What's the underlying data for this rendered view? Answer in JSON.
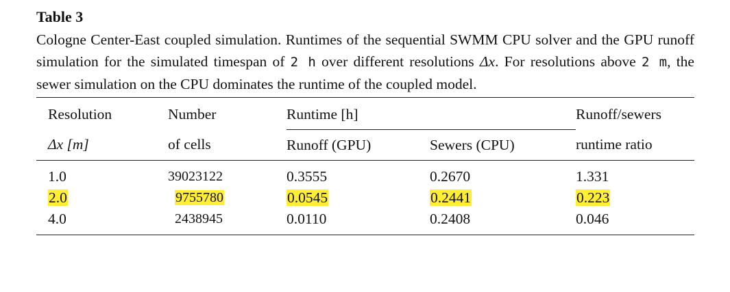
{
  "table_label": "Table 3",
  "caption": {
    "part1": "Cologne Center-East coupled simulation. Runtimes of the sequential SWMM CPU solver and the GPU runoff simulation for the simulated timespan of ",
    "timespan": "2 h",
    "part2": " over different resolutions ",
    "symbol": "Δx",
    "part3": ". For resolutions above ",
    "threshold": "2 m",
    "part4": ", the sewer simulation on the CPU dominates the runtime of the coupled model."
  },
  "headers": {
    "resolution": "Resolution",
    "resolution_unit": "Δx [m]",
    "cells_line1": "Number",
    "cells_line2": "of cells",
    "runtime_group": "Runtime [h]",
    "runoff_gpu": "Runoff (GPU)",
    "sewers_cpu": "Sewers (CPU)",
    "ratio_line1": "Runoff/sewers",
    "ratio_line2": "runtime ratio"
  },
  "rows": [
    {
      "resolution": "1.0",
      "cells": "39023122",
      "runoff": "0.3555",
      "sewers": "0.2670",
      "ratio": "1.331"
    },
    {
      "resolution": "2.0",
      "cells": "9755780",
      "runoff": "0.0545",
      "sewers": "0.2441",
      "ratio": "0.223"
    },
    {
      "resolution": "4.0",
      "cells": "2438945",
      "runoff": "0.0110",
      "sewers": "0.2408",
      "ratio": "0.046"
    }
  ],
  "highlight_color": "#ffee33"
}
